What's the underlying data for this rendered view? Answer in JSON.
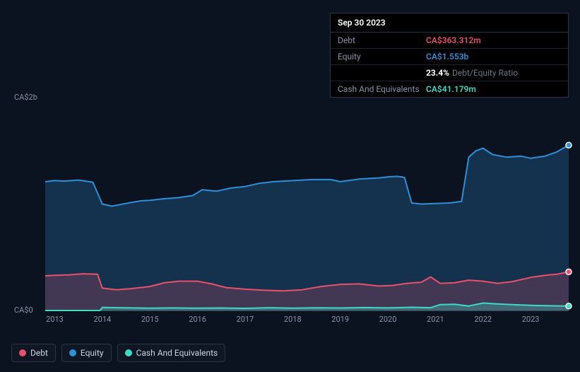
{
  "tooltip": {
    "date": "Sep 30 2023",
    "rows": {
      "debt": {
        "label": "Debt",
        "value": "CA$363.312m",
        "color": "#e8516a"
      },
      "equity": {
        "label": "Equity",
        "value": "CA$1.553b",
        "color": "#2f8fd8"
      },
      "ratio": {
        "strong": "23.4%",
        "sub": "Debt/Equity Ratio"
      },
      "cash": {
        "label": "Cash And Equivalents",
        "value": "CA$41.179m",
        "color": "#3fd9c4"
      }
    }
  },
  "chart": {
    "type": "area",
    "background_color": "#0b1220",
    "grid_color": "#1a2332",
    "axis_color": "#3a4556",
    "label_color": "#8a94a6",
    "label_fontsize": 11,
    "ylim": [
      0,
      2000
    ],
    "x_years": [
      2013,
      2014,
      2015,
      2016,
      2017,
      2018,
      2019,
      2020,
      2021,
      2022,
      2023
    ],
    "x_range": [
      2012.8,
      2023.8
    ],
    "y_ticks": [
      {
        "value": 0,
        "label": "CA$0"
      },
      {
        "value": 2000,
        "label": "CA$2b"
      }
    ],
    "series": {
      "equity": {
        "name": "Equity",
        "color": "#2f8fd8",
        "fill_opacity": 0.25,
        "line_width": 2,
        "end_marker": true,
        "data": [
          [
            2012.8,
            1210
          ],
          [
            2013.0,
            1220
          ],
          [
            2013.2,
            1215
          ],
          [
            2013.5,
            1225
          ],
          [
            2013.8,
            1205
          ],
          [
            2014.0,
            1000
          ],
          [
            2014.2,
            980
          ],
          [
            2014.5,
            1005
          ],
          [
            2014.8,
            1030
          ],
          [
            2015.0,
            1035
          ],
          [
            2015.3,
            1050
          ],
          [
            2015.6,
            1060
          ],
          [
            2015.9,
            1080
          ],
          [
            2016.1,
            1135
          ],
          [
            2016.4,
            1120
          ],
          [
            2016.7,
            1150
          ],
          [
            2017.0,
            1165
          ],
          [
            2017.3,
            1195
          ],
          [
            2017.6,
            1210
          ],
          [
            2018.0,
            1220
          ],
          [
            2018.4,
            1230
          ],
          [
            2018.8,
            1230
          ],
          [
            2019.0,
            1210
          ],
          [
            2019.4,
            1235
          ],
          [
            2019.8,
            1245
          ],
          [
            2020.0,
            1255
          ],
          [
            2020.2,
            1260
          ],
          [
            2020.35,
            1250
          ],
          [
            2020.5,
            1010
          ],
          [
            2020.7,
            1000
          ],
          [
            2021.0,
            1005
          ],
          [
            2021.3,
            1010
          ],
          [
            2021.55,
            1025
          ],
          [
            2021.7,
            1440
          ],
          [
            2021.85,
            1500
          ],
          [
            2022.0,
            1525
          ],
          [
            2022.2,
            1465
          ],
          [
            2022.5,
            1440
          ],
          [
            2022.8,
            1450
          ],
          [
            2023.0,
            1430
          ],
          [
            2023.3,
            1450
          ],
          [
            2023.55,
            1490
          ],
          [
            2023.8,
            1553
          ]
        ]
      },
      "debt": {
        "name": "Debt",
        "color": "#e8516a",
        "fill_opacity": 0.22,
        "line_width": 2,
        "end_marker": true,
        "data": [
          [
            2012.8,
            325
          ],
          [
            2013.0,
            330
          ],
          [
            2013.3,
            335
          ],
          [
            2013.6,
            345
          ],
          [
            2013.9,
            340
          ],
          [
            2014.0,
            210
          ],
          [
            2014.3,
            195
          ],
          [
            2014.6,
            205
          ],
          [
            2015.0,
            225
          ],
          [
            2015.3,
            260
          ],
          [
            2015.6,
            275
          ],
          [
            2016.0,
            275
          ],
          [
            2016.3,
            250
          ],
          [
            2016.6,
            215
          ],
          [
            2017.0,
            200
          ],
          [
            2017.4,
            190
          ],
          [
            2017.8,
            185
          ],
          [
            2018.2,
            195
          ],
          [
            2018.6,
            225
          ],
          [
            2019.0,
            245
          ],
          [
            2019.4,
            250
          ],
          [
            2019.8,
            230
          ],
          [
            2020.1,
            235
          ],
          [
            2020.4,
            255
          ],
          [
            2020.7,
            265
          ],
          [
            2020.9,
            315
          ],
          [
            2021.1,
            255
          ],
          [
            2021.4,
            260
          ],
          [
            2021.7,
            285
          ],
          [
            2022.0,
            275
          ],
          [
            2022.3,
            255
          ],
          [
            2022.6,
            270
          ],
          [
            2023.0,
            310
          ],
          [
            2023.3,
            330
          ],
          [
            2023.55,
            340
          ],
          [
            2023.8,
            363
          ]
        ]
      },
      "cash": {
        "name": "Cash And Equivalents",
        "color": "#3fd9c4",
        "fill_opacity": 0.3,
        "line_width": 2,
        "end_marker": true,
        "data": [
          [
            2012.8,
            0
          ],
          [
            2013.5,
            0
          ],
          [
            2013.95,
            0
          ],
          [
            2014.0,
            28
          ],
          [
            2014.5,
            25
          ],
          [
            2015.0,
            22
          ],
          [
            2015.5,
            24
          ],
          [
            2016.0,
            21
          ],
          [
            2016.5,
            23
          ],
          [
            2017.0,
            20
          ],
          [
            2017.5,
            26
          ],
          [
            2018.0,
            22
          ],
          [
            2018.5,
            25
          ],
          [
            2019.0,
            23
          ],
          [
            2019.5,
            27
          ],
          [
            2020.0,
            24
          ],
          [
            2020.5,
            30
          ],
          [
            2020.9,
            26
          ],
          [
            2021.1,
            55
          ],
          [
            2021.4,
            58
          ],
          [
            2021.7,
            42
          ],
          [
            2022.0,
            70
          ],
          [
            2022.3,
            62
          ],
          [
            2022.6,
            55
          ],
          [
            2023.0,
            48
          ],
          [
            2023.4,
            44
          ],
          [
            2023.8,
            41
          ]
        ]
      }
    },
    "legend_order": [
      "debt",
      "equity",
      "cash"
    ]
  }
}
